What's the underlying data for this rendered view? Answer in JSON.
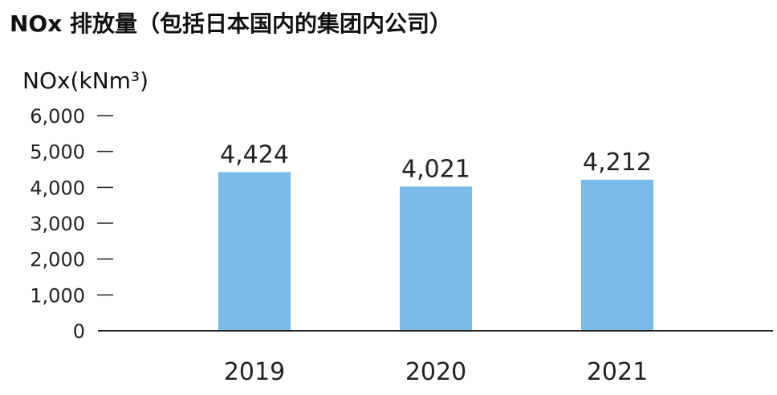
{
  "page_title": "NOx 排放量（包括日本国内的集团内公司）",
  "chart_data": {
    "type": "bar",
    "title": "NOx 排放量（包括日本国内的集团内公司）",
    "ylabel": "NOx(kNm³)",
    "xlabel": "",
    "categories": [
      "2019",
      "2020",
      "2021"
    ],
    "values": [
      4424,
      4021,
      4212
    ],
    "value_labels": [
      "4,424",
      "4,021",
      "4,212"
    ],
    "yticks": [
      0,
      1000,
      2000,
      3000,
      4000,
      5000,
      6000
    ],
    "ytick_labels": [
      "0",
      "1,000",
      "2,000",
      "3,000",
      "4,000",
      "5,000",
      "6,000"
    ],
    "ylim": [
      0,
      6000
    ],
    "grid": false,
    "bar_color": "#7bbbe7",
    "axis_color": "#222222",
    "text_color": "#222222"
  }
}
